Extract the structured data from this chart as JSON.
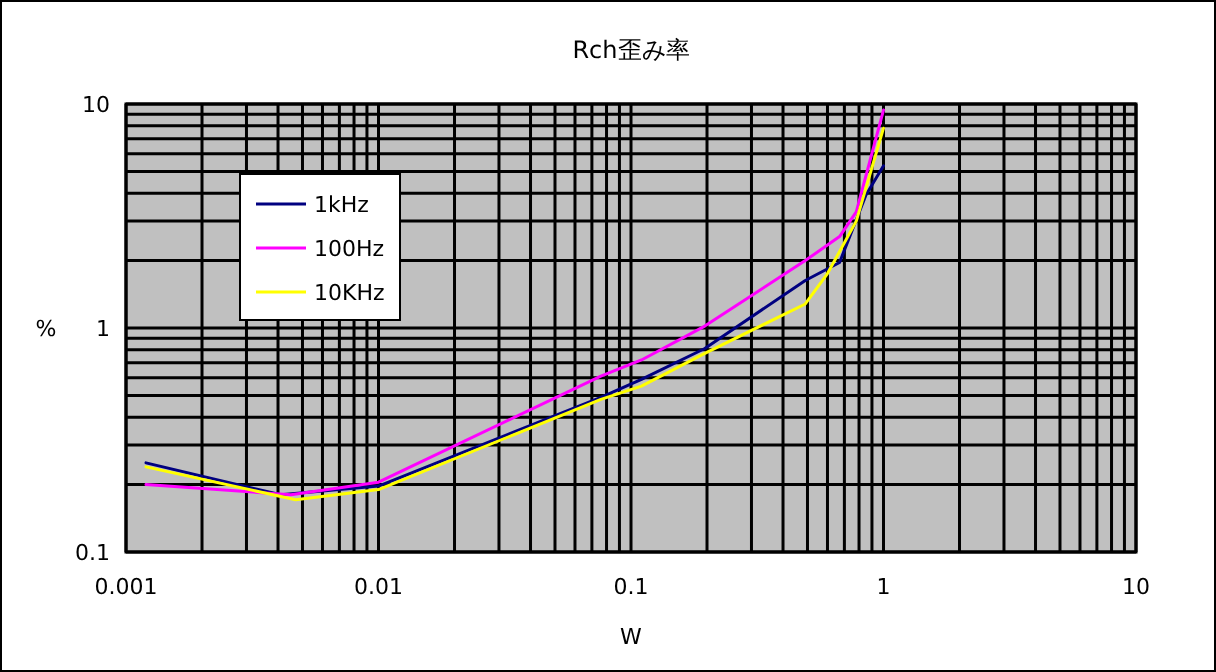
{
  "chart_data": {
    "type": "line",
    "title": "Rch歪み率",
    "xlabel": "W",
    "ylabel": "%",
    "log": "xy",
    "grid": true,
    "legend": "left",
    "marker": "none",
    "line_style": "solid",
    "xlim": [
      0.001,
      10
    ],
    "xticks": [
      0.001,
      0.01,
      0.1,
      1,
      10
    ],
    "ylim": [
      0.1,
      10
    ],
    "yticks": [
      0.1,
      1,
      10
    ],
    "series": [
      {
        "name": "1kHz",
        "color": "#000080",
        "x": [
          0.0012,
          0.0041,
          0.01,
          0.076,
          0.11,
          0.196,
          0.49,
          0.67,
          0.85,
          1.0
        ],
        "values": [
          0.25,
          0.18,
          0.197,
          0.49,
          0.59,
          0.81,
          1.63,
          1.96,
          3.9,
          5.3
        ]
      },
      {
        "name": "100Hz",
        "color": "#ff00ff",
        "x": [
          0.0012,
          0.0045,
          0.01,
          0.076,
          0.11,
          0.196,
          0.49,
          0.67,
          0.78,
          1.0
        ],
        "values": [
          0.2,
          0.18,
          0.205,
          0.61,
          0.72,
          1.02,
          2.0,
          2.56,
          3.3,
          9.4
        ]
      },
      {
        "name": "10KHz",
        "color": "#ffff00",
        "x": [
          0.0012,
          0.0047,
          0.01,
          0.076,
          0.11,
          0.196,
          0.49,
          0.6,
          0.78,
          1.0
        ],
        "values": [
          0.24,
          0.171,
          0.19,
          0.48,
          0.55,
          0.77,
          1.28,
          1.75,
          3.0,
          7.8
        ]
      }
    ]
  }
}
